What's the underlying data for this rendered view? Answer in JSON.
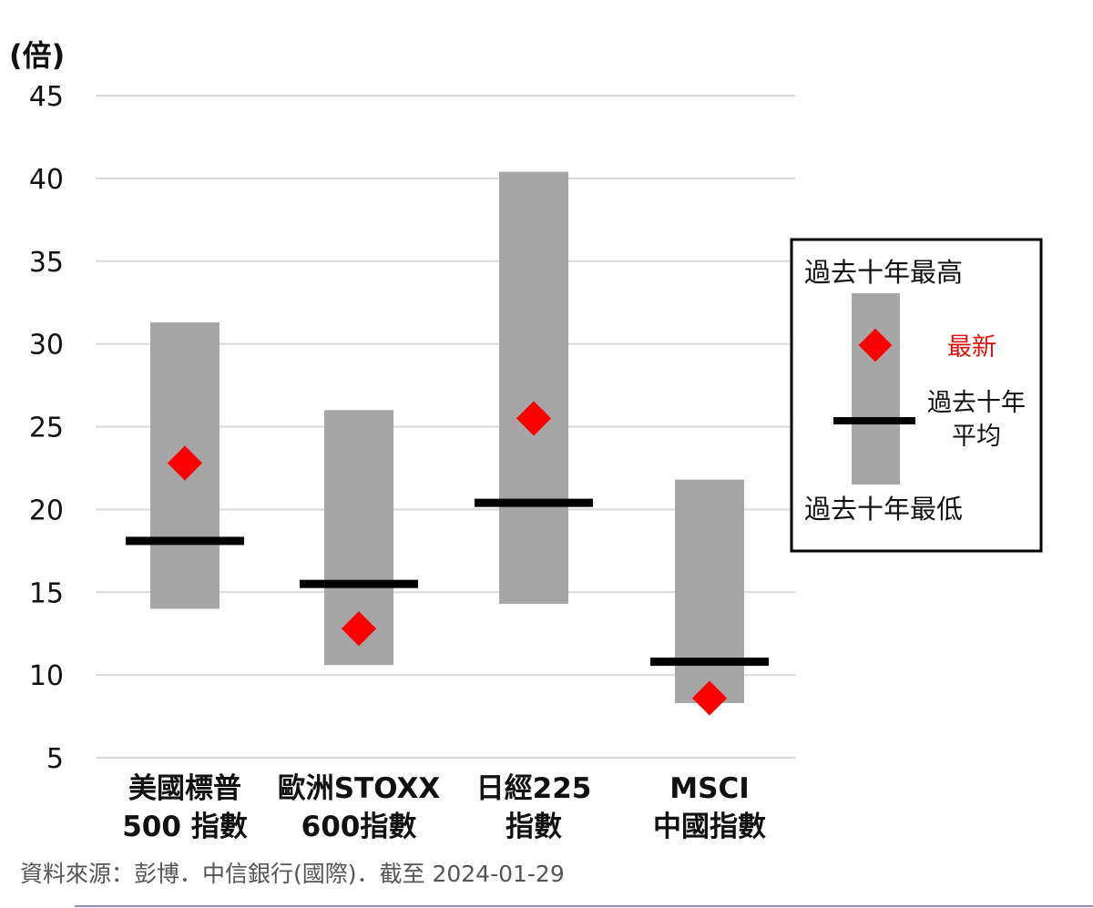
{
  "chart_data": {
    "type": "range-bar",
    "ylabel": "(倍)",
    "ylim": [
      5,
      45
    ],
    "yticks": [
      5,
      10,
      15,
      20,
      25,
      30,
      35,
      40,
      45
    ],
    "grid": true,
    "categories": [
      {
        "lines": [
          "美國標普",
          "500 指數"
        ],
        "high": 31.3,
        "low": 14.0,
        "avg": 18.1,
        "latest": 22.8
      },
      {
        "lines": [
          "歐洲STOXX",
          "600指數"
        ],
        "high": 26.0,
        "low": 10.6,
        "avg": 15.5,
        "latest": 12.8
      },
      {
        "lines": [
          "日經225",
          "指數"
        ],
        "high": 40.4,
        "low": 14.3,
        "avg": 20.4,
        "latest": 25.5
      },
      {
        "lines": [
          "MSCI",
          "中國指數"
        ],
        "high": 21.8,
        "low": 8.3,
        "avg": 10.8,
        "latest": 8.6
      }
    ],
    "legend": {
      "position": "right",
      "high_label": "過去十年最高",
      "latest_label": "最新",
      "avg_label_lines": [
        "過去十年",
        "平均"
      ],
      "low_label": "過去十年最低"
    },
    "colors": {
      "range": "#a6a6a6",
      "average": "#000000",
      "latest": "#ff0000",
      "grid": "#d9d9d9"
    }
  },
  "source": "資料來源：彭博．中信銀行(國際)．截至 2024-01-29"
}
